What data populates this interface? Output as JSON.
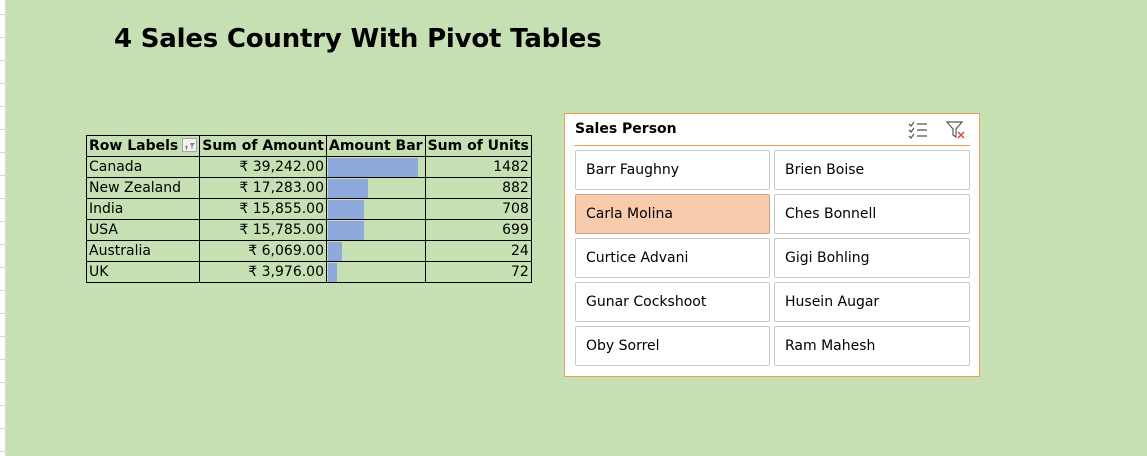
{
  "page": {
    "title": "4 Sales Country With Pivot Tables"
  },
  "pivot": {
    "headers": {
      "row_labels": "Row Labels",
      "sum_amount": "Sum of Amount",
      "amount_bar": "Amount Bar",
      "sum_units": "Sum of Units"
    },
    "bar_color": "#8ea9db",
    "rows": [
      {
        "label": "Canada",
        "amount": "₹ 39,242.00",
        "bar_fraction": 1.0,
        "units": "1482"
      },
      {
        "label": "New Zealand",
        "amount": "₹ 17,283.00",
        "bar_fraction": 0.44,
        "units": "882"
      },
      {
        "label": "India",
        "amount": "₹ 15,855.00",
        "bar_fraction": 0.4,
        "units": "708"
      },
      {
        "label": "USA",
        "amount": "₹ 15,785.00",
        "bar_fraction": 0.4,
        "units": "699"
      },
      {
        "label": "Australia",
        "amount": "₹ 6,069.00",
        "bar_fraction": 0.155,
        "units": "24"
      },
      {
        "label": "UK",
        "amount": "₹ 3,976.00",
        "bar_fraction": 0.1,
        "units": "72"
      }
    ]
  },
  "slicer": {
    "title": "Sales Person",
    "border_color": "#ed9d57",
    "selected_color": "#f8cbad",
    "icons": [
      "multi-select-icon",
      "clear-filter-icon"
    ],
    "items": [
      {
        "label": "Barr Faughny",
        "selected": false
      },
      {
        "label": "Brien Boise",
        "selected": false
      },
      {
        "label": "Carla Molina",
        "selected": true
      },
      {
        "label": "Ches Bonnell",
        "selected": false
      },
      {
        "label": "Curtice Advani",
        "selected": false
      },
      {
        "label": "Gigi Bohling",
        "selected": false
      },
      {
        "label": "Gunar Cockshoot",
        "selected": false
      },
      {
        "label": "Husein Augar",
        "selected": false
      },
      {
        "label": "Oby Sorrel",
        "selected": false
      },
      {
        "label": "Ram Mahesh",
        "selected": false
      }
    ]
  }
}
